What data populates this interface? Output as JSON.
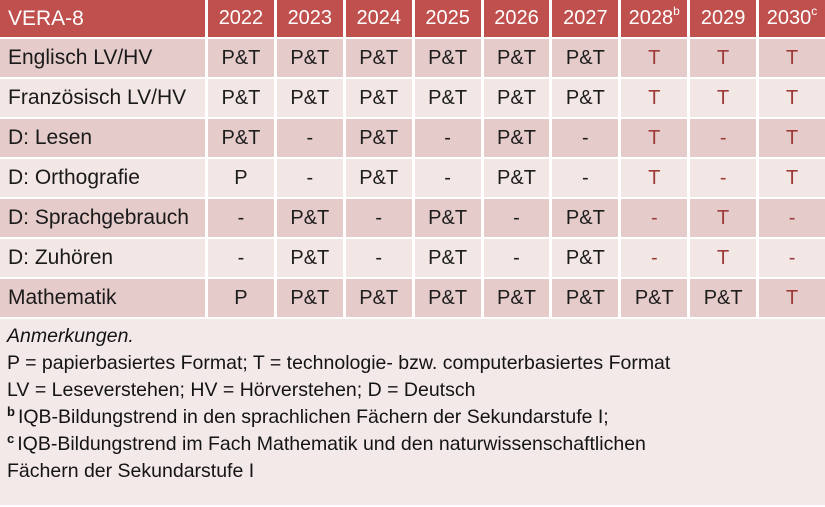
{
  "table": {
    "header": {
      "label": "VERA-8",
      "years": [
        {
          "text": "2022",
          "sup": ""
        },
        {
          "text": "2023",
          "sup": ""
        },
        {
          "text": "2024",
          "sup": ""
        },
        {
          "text": "2025",
          "sup": ""
        },
        {
          "text": "2026",
          "sup": ""
        },
        {
          "text": "2027",
          "sup": ""
        },
        {
          "text": "2028",
          "sup": "b"
        },
        {
          "text": "2029",
          "sup": ""
        },
        {
          "text": "2030",
          "sup": "c"
        }
      ]
    },
    "tech_only_from_column": 6,
    "rows": [
      {
        "label": "Englisch LV/HV",
        "values": [
          "P&T",
          "P&T",
          "P&T",
          "P&T",
          "P&T",
          "P&T",
          "T",
          "T",
          "T"
        ]
      },
      {
        "label": "Französisch LV/HV",
        "values": [
          "P&T",
          "P&T",
          "P&T",
          "P&T",
          "P&T",
          "P&T",
          "T",
          "T",
          "T"
        ]
      },
      {
        "label": "D: Lesen",
        "values": [
          "P&T",
          "-",
          "P&T",
          "-",
          "P&T",
          "-",
          "T",
          "-",
          "T"
        ]
      },
      {
        "label": "D: Orthografie",
        "values": [
          "P",
          "-",
          "P&T",
          "-",
          "P&T",
          "-",
          "T",
          "-",
          "T"
        ]
      },
      {
        "label": "D: Sprachgebrauch",
        "values": [
          "-",
          "P&T",
          "-",
          "P&T",
          "-",
          "P&T",
          "-",
          "T",
          "-"
        ]
      },
      {
        "label": "D: Zuhören",
        "values": [
          "-",
          "P&T",
          "-",
          "P&T",
          "-",
          "P&T",
          "-",
          "T",
          "-"
        ]
      },
      {
        "label": "Mathematik",
        "values": [
          "P",
          "P&T",
          "P&T",
          "P&T",
          "P&T",
          "P&T",
          "P&T",
          "P&T",
          "T"
        ]
      }
    ]
  },
  "notes": {
    "heading": "Anmerkungen.",
    "formats_line": "P = papierbasiertes Format; T = technologie- bzw. computerbasiertes Format",
    "abbreviations_line": "LV = Leseverstehen; HV = Hörverstehen; D = Deutsch",
    "note_b": {
      "sup": "b",
      "text": "IQB-Bildungstrend in den sprachlichen Fächern der Sekundarstufe I;"
    },
    "note_c": {
      "sup": "c",
      "text": "IQB-Bildungstrend im Fach Mathematik und den naturwissenschaftlichen\nFächern der Sekundarstufe I"
    }
  },
  "colors": {
    "header_bg": "#C0504D",
    "band_dark": "#E5CBCA",
    "band_light": "#F2E7E5",
    "notes_bg": "#F2E9E8",
    "tech_red": "#9C3B38"
  }
}
